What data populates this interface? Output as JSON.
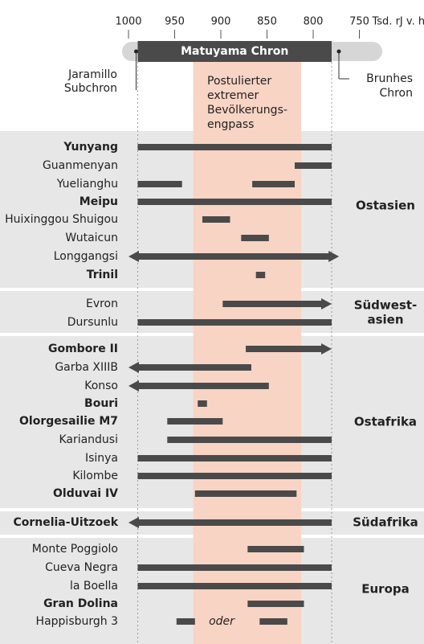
{
  "chart_data": {
    "type": "range-bar",
    "axis_unit": "Tsd. rJ v. h.",
    "x_ticks": [
      1000,
      950,
      900,
      850,
      800,
      750
    ],
    "xlim": [
      1000,
      760
    ],
    "chron_labels": {
      "matuyama": "Matuyama Chron",
      "jaramillo": [
        "Jaramillo",
        "Subchron"
      ],
      "brunhes": [
        "Brunhes",
        "Chron"
      ]
    },
    "chrons": {
      "jaramillo_end": 990,
      "matuyama": [
        990,
        780
      ]
    },
    "bottleneck": {
      "label_lines": [
        "Postulierter",
        "extremer",
        "Bevölkerungs-",
        "engpass"
      ],
      "range": [
        930,
        813
      ]
    },
    "sites": [
      {
        "name": "Yunyang",
        "bold": true,
        "region": "Ostasien",
        "range": [
          990,
          780
        ]
      },
      {
        "name": "Guanmenyan",
        "bold": false,
        "region": "Ostasien",
        "range": [
          820,
          780
        ]
      },
      {
        "name": "Yuelianghu",
        "bold": false,
        "region": "Ostasien",
        "range": [
          990,
          942
        ]
      },
      {
        "name": "",
        "bold": false,
        "region": "Ostasien",
        "range": [
          866,
          820
        ]
      },
      {
        "name": "Meipu",
        "bold": true,
        "region": "Ostasien",
        "range": [
          990,
          780
        ]
      },
      {
        "name": "Huixinggou Shuigou",
        "bold": false,
        "region": "Ostasien",
        "range": [
          920,
          890
        ]
      },
      {
        "name": "Wutaicun",
        "bold": false,
        "region": "Ostasien",
        "range": [
          878,
          848
        ]
      },
      {
        "name": "Longgangsi",
        "bold": false,
        "region": "Ostasien",
        "range": [
          1000,
          772
        ],
        "arrow_left": true,
        "arrow_right": true
      },
      {
        "name": "Trinil",
        "bold": true,
        "region": "Ostasien",
        "range": [
          862,
          852
        ]
      },
      {
        "name": "Evron",
        "bold": false,
        "region": "Südwestasien",
        "range": [
          898,
          780
        ],
        "arrow_right": true
      },
      {
        "name": "Dursunlu",
        "bold": false,
        "region": "Südwestasien",
        "range": [
          990,
          780
        ]
      },
      {
        "name": "Gombore II",
        "bold": true,
        "region": "Ostafrika",
        "range": [
          873,
          780
        ],
        "arrow_right": true
      },
      {
        "name": "Garba XIIIB",
        "bold": false,
        "region": "Ostafrika",
        "range": [
          1000,
          867
        ],
        "arrow_left": true
      },
      {
        "name": "Konso",
        "bold": false,
        "region": "Ostafrika",
        "range": [
          1000,
          848
        ],
        "arrow_left": true
      },
      {
        "name": "Bouri",
        "bold": true,
        "region": "Ostafrika",
        "range": [
          925,
          915
        ]
      },
      {
        "name": "Olorgesailie M7",
        "bold": true,
        "region": "Ostafrika",
        "range": [
          958,
          898
        ]
      },
      {
        "name": "Kariandusi",
        "bold": false,
        "region": "Ostafrika",
        "range": [
          958,
          780
        ]
      },
      {
        "name": "Isinya",
        "bold": false,
        "region": "Ostafrika",
        "range": [
          990,
          780
        ]
      },
      {
        "name": "Kilombe",
        "bold": false,
        "region": "Ostafrika",
        "range": [
          990,
          780
        ]
      },
      {
        "name": "Olduvai IV",
        "bold": true,
        "region": "Ostafrika",
        "range": [
          928,
          818
        ]
      },
      {
        "name": "Cornelia-Uitzoek",
        "bold": true,
        "region": "Südafrika",
        "range": [
          1000,
          780
        ],
        "arrow_left": true
      },
      {
        "name": "Monte Poggiolo",
        "bold": false,
        "region": "Europa",
        "range": [
          871,
          810
        ]
      },
      {
        "name": "Cueva Negra",
        "bold": false,
        "region": "Europa",
        "range": [
          990,
          780
        ]
      },
      {
        "name": "la Boella",
        "bold": false,
        "region": "Europa",
        "range": [
          990,
          780
        ]
      },
      {
        "name": "Gran Dolina",
        "bold": true,
        "region": "Europa",
        "range": [
          871,
          810
        ]
      },
      {
        "name": "Happisburgh 3",
        "bold": false,
        "region": "Europa",
        "range": [
          948,
          928
        ]
      },
      {
        "name": "",
        "bold": false,
        "region": "Europa",
        "range": [
          858,
          828
        ]
      }
    ],
    "or_label": "oder",
    "regions": [
      {
        "name": "Ostasien",
        "bold": true,
        "lines": [
          "Ostasien"
        ]
      },
      {
        "name": "Südwestasien",
        "bold": true,
        "lines": [
          "Südwest-",
          "asien"
        ]
      },
      {
        "name": "Ostafrika",
        "bold": true,
        "lines": [
          "Ostafrika"
        ]
      },
      {
        "name": "Südafrika",
        "bold": true,
        "lines": [
          "Südafrika"
        ]
      },
      {
        "name": "Europa",
        "bold": true,
        "lines": [
          "Europa"
        ]
      }
    ]
  },
  "colors": {
    "bar": "#4a4a4a",
    "band": "#f8d4c4",
    "region_bg": "#e7e7e7",
    "chron_bar": "#4a4a4a",
    "chron_track": "#d6d6d6",
    "text": "#222222"
  }
}
